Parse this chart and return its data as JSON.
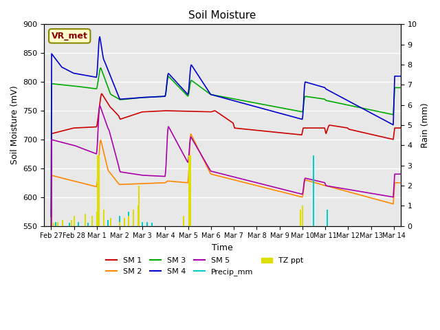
{
  "title": "Soil Moisture",
  "xlabel": "Time",
  "ylabel_left": "Soil Moisture (mV)",
  "ylabel_right": "Rain (mm)",
  "ylim_left": [
    550,
    900
  ],
  "ylim_right": [
    0.0,
    10.0
  ],
  "yticks_left": [
    550,
    600,
    650,
    700,
    750,
    800,
    850,
    900
  ],
  "yticks_right": [
    0.0,
    1.0,
    2.0,
    3.0,
    4.0,
    5.0,
    6.0,
    7.0,
    8.0,
    9.0,
    10.0
  ],
  "colors": {
    "SM1": "#cc0000",
    "SM2": "#ff8800",
    "SM3": "#00aa00",
    "SM4": "#0000cc",
    "SM5": "#aa00aa",
    "Precip_mm": "#00cccc",
    "TZ_ppt": "#dddd00"
  },
  "background_color": "#e8e8e8",
  "annotation_text": "VR_met",
  "annotation_bg": "#ffffcc",
  "annotation_border": "#888800"
}
